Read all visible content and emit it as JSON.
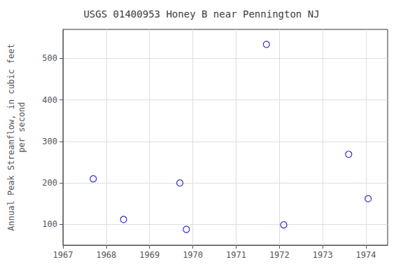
{
  "chart_data": {
    "type": "scatter",
    "title": "USGS 01400953 Honey B near Pennington NJ",
    "ylabel": "Annual Peak Streamflow, in cubic feet\n    per second",
    "x": [
      1967.7,
      1968.4,
      1969.7,
      1969.85,
      1971.7,
      1972.1,
      1973.6,
      1974.05
    ],
    "values": [
      210,
      112,
      200,
      88,
      534,
      99,
      269,
      162
    ],
    "color": "#0000bb",
    "marker": "circle",
    "xlim": [
      1967,
      1974.5
    ],
    "xticks": [
      1967,
      1968,
      1969,
      1970,
      1971,
      1972,
      1973,
      1974
    ],
    "ylim": [
      50,
      570
    ],
    "yticks": [
      100,
      200,
      300,
      400,
      500
    ],
    "grid": true
  }
}
